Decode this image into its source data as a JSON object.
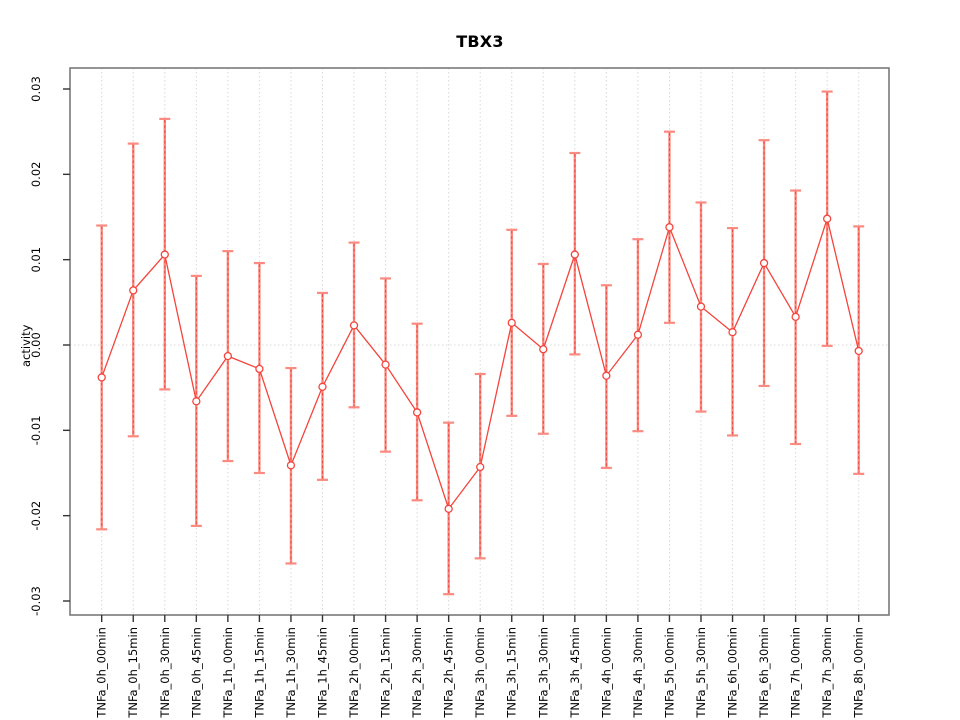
{
  "window": {
    "background": "#ffffff"
  },
  "chart_data": {
    "type": "line",
    "title": "TBX3",
    "xlabel": "",
    "ylabel": "activity",
    "legend": "none",
    "grid": {
      "vertical_dotted_per_category": true,
      "horizontal_dotted_zero_line": true
    },
    "ylim": [
      -0.0316,
      0.0325
    ],
    "yticks": [
      0.03,
      0.02,
      0.01,
      0,
      -0.01,
      -0.02,
      -0.03
    ],
    "ytick_labels": [
      "0.03",
      "0.02",
      "0.01",
      "0.00",
      "-0.01",
      "-0.02",
      "-0.03"
    ],
    "point_style": "open-circle",
    "error_bars": true,
    "colors": {
      "series_line": "#f4443c",
      "error_bar": "#fb8a80",
      "error_bar_dash": "#ef4a42",
      "grid_line": "#d9d9d9",
      "axis_box": "#7a7a7a",
      "tick": "#333333",
      "text": "#000000"
    },
    "categories": [
      "TNFa_0h_00min",
      "TNFa_0h_15min",
      "TNFa_0h_30min",
      "TNFa_0h_45min",
      "TNFa_1h_00min",
      "TNFa_1h_15min",
      "TNFa_1h_30min",
      "TNFa_1h_45min",
      "TNFa_2h_00min",
      "TNFa_2h_15min",
      "TNFa_2h_30min",
      "TNFa_2h_45min",
      "TNFa_3h_00min",
      "TNFa_3h_15min",
      "TNFa_3h_30min",
      "TNFa_3h_45min",
      "TNFa_4h_00min",
      "TNFa_4h_30min",
      "TNFa_5h_00min",
      "TNFa_5h_30min",
      "TNFa_6h_00min",
      "TNFa_6h_30min",
      "TNFa_7h_00min",
      "TNFa_7h_30min",
      "TNFa_8h_00min"
    ],
    "series": [
      {
        "name": "activity",
        "values": [
          -0.0038,
          0.0064,
          0.0106,
          -0.0066,
          -0.0013,
          -0.0028,
          -0.0141,
          -0.0049,
          0.0023,
          -0.0023,
          -0.0079,
          -0.0192,
          -0.0143,
          0.0026,
          -0.0005,
          0.0106,
          -0.0036,
          0.0012,
          0.0138,
          0.0045,
          0.0015,
          0.0096,
          0.0033,
          0.0148,
          -0.0007
        ],
        "upper": [
          0.014,
          0.0236,
          0.0265,
          0.0081,
          0.011,
          0.0096,
          -0.0027,
          0.0061,
          0.012,
          0.0078,
          0.0025,
          -0.0091,
          -0.0034,
          0.0135,
          0.0095,
          0.0225,
          0.007,
          0.0124,
          0.025,
          0.0167,
          0.0137,
          0.024,
          0.0181,
          0.0297,
          0.0139
        ],
        "lower": [
          -0.0216,
          -0.0107,
          -0.0052,
          -0.0212,
          -0.0136,
          -0.015,
          -0.0256,
          -0.0158,
          -0.0073,
          -0.0125,
          -0.0182,
          -0.0292,
          -0.025,
          -0.0083,
          -0.0104,
          -0.0011,
          -0.0144,
          -0.0101,
          0.0026,
          -0.0078,
          -0.0106,
          -0.0048,
          -0.0116,
          -0.0001,
          -0.0151
        ]
      }
    ]
  }
}
